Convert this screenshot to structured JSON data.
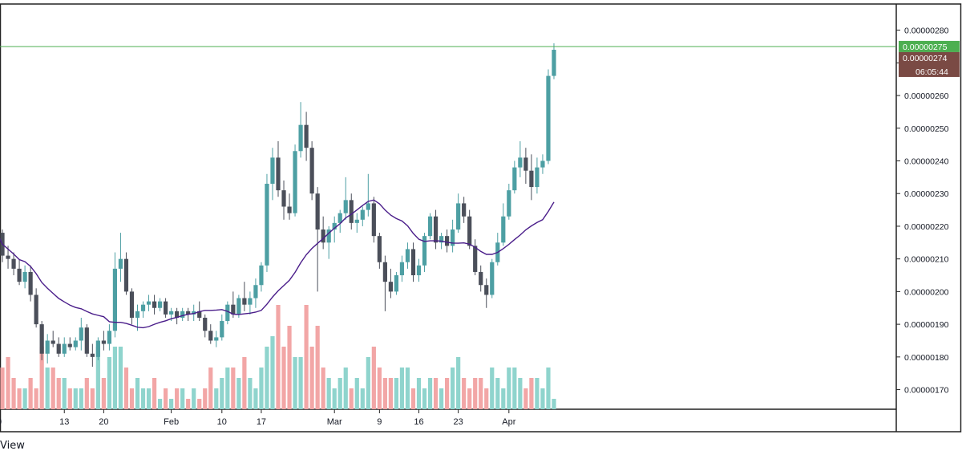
{
  "chart_data": {
    "type": "candlestick",
    "title": "",
    "xlabel": "",
    "ylabel": "",
    "ylim": [
      1.64e-06,
      2.88e-06
    ],
    "y_ticks": [
      "0.00000170",
      "0.00000180",
      "0.00000190",
      "0.00000200",
      "0.00000210",
      "0.00000220",
      "0.00000230",
      "0.00000240",
      "0.00000250",
      "0.00000260",
      "0.00000270",
      "0.00000280"
    ],
    "y_tick_values": [
      1.7e-06,
      1.8e-06,
      1.9e-06,
      2e-06,
      2.1e-06,
      2.2e-06,
      2.3e-06,
      2.4e-06,
      2.5e-06,
      2.6e-06,
      2.7e-06,
      2.8e-06
    ],
    "x_ticks": [
      {
        "label": "20",
        "date": "2020-01-01"
      },
      {
        "label": "13",
        "date": "2020-01-13"
      },
      {
        "label": "20",
        "date": "2020-01-20"
      },
      {
        "label": "Feb",
        "date": "2020-02-01"
      },
      {
        "label": "10",
        "date": "2020-02-10"
      },
      {
        "label": "17",
        "date": "2020-02-17"
      },
      {
        "label": "Mar",
        "date": "2020-03-01"
      },
      {
        "label": "9",
        "date": "2020-03-09"
      },
      {
        "label": "16",
        "date": "2020-03-16"
      },
      {
        "label": "23",
        "date": "2020-03-23"
      },
      {
        "label": "Apr",
        "date": "2020-04-01"
      }
    ],
    "start_date": "2020-01-01",
    "candles_ohlc": [
      [
        2.13e-06,
        2.21e-06,
        2.1e-06,
        2.18e-06
      ],
      [
        2.18e-06,
        2.19e-06,
        2.09e-06,
        2.11e-06
      ],
      [
        2.11e-06,
        2.14e-06,
        2.07e-06,
        2.1e-06
      ],
      [
        2.1e-06,
        2.12e-06,
        2.05e-06,
        2.07e-06
      ],
      [
        2.07e-06,
        2.1e-06,
        2.02e-06,
        2.03e-06
      ],
      [
        2.03e-06,
        2.08e-06,
        2.01e-06,
        2.06e-06
      ],
      [
        2.06e-06,
        2.08e-06,
        1.97e-06,
        1.99e-06
      ],
      [
        1.99e-06,
        2.01e-06,
        1.89e-06,
        1.9e-06
      ],
      [
        1.9e-06,
        1.91e-06,
        1.79e-06,
        1.81e-06
      ],
      [
        1.81e-06,
        1.87e-06,
        1.78e-06,
        1.85e-06
      ],
      [
        1.85e-06,
        1.88e-06,
        1.83e-06,
        1.84e-06
      ],
      [
        1.84e-06,
        1.86e-06,
        1.8e-06,
        1.81e-06
      ],
      [
        1.81e-06,
        1.86e-06,
        1.8e-06,
        1.84e-06
      ],
      [
        1.84e-06,
        1.86e-06,
        1.82e-06,
        1.83e-06
      ],
      [
        1.83e-06,
        1.86e-06,
        1.82e-06,
        1.85e-06
      ],
      [
        1.85e-06,
        1.92e-06,
        1.82e-06,
        1.89e-06
      ],
      [
        1.89e-06,
        1.9e-06,
        1.8e-06,
        1.81e-06
      ],
      [
        1.81e-06,
        1.84e-06,
        1.77e-06,
        1.8e-06
      ],
      [
        1.8e-06,
        1.86e-06,
        1.79e-06,
        1.85e-06
      ],
      [
        1.85e-06,
        1.88e-06,
        1.82e-06,
        1.84e-06
      ],
      [
        1.84e-06,
        1.9e-06,
        1.82e-06,
        1.88e-06
      ],
      [
        1.88e-06,
        2.12e-06,
        1.86e-06,
        2.07e-06
      ],
      [
        2.07e-06,
        2.18e-06,
        2.03e-06,
        2.1e-06
      ],
      [
        2.1e-06,
        2.12e-06,
        1.99e-06,
        2e-06
      ],
      [
        2e-06,
        2.01e-06,
        1.9e-06,
        1.92e-06
      ],
      [
        1.92e-06,
        1.96e-06,
        1.88e-06,
        1.94e-06
      ],
      [
        1.94e-06,
        1.97e-06,
        1.92e-06,
        1.96e-06
      ],
      [
        1.96e-06,
        1.99e-06,
        1.94e-06,
        1.97e-06
      ],
      [
        1.97e-06,
        1.99e-06,
        1.93e-06,
        1.95e-06
      ],
      [
        1.95e-06,
        1.98e-06,
        1.94e-06,
        1.97e-06
      ],
      [
        1.97e-06,
        1.98e-06,
        1.92e-06,
        1.93e-06
      ],
      [
        1.93e-06,
        1.95e-06,
        1.91e-06,
        1.94e-06
      ],
      [
        1.94e-06,
        1.95e-06,
        1.9e-06,
        1.92e-06
      ],
      [
        1.92e-06,
        1.95e-06,
        1.91e-06,
        1.94e-06
      ],
      [
        1.94e-06,
        1.95e-06,
        1.91e-06,
        1.93e-06
      ],
      [
        1.93e-06,
        1.96e-06,
        1.91e-06,
        1.94e-06
      ],
      [
        1.94e-06,
        1.97e-06,
        1.91e-06,
        1.92e-06
      ],
      [
        1.92e-06,
        1.93e-06,
        1.86e-06,
        1.88e-06
      ],
      [
        1.88e-06,
        1.9e-06,
        1.84e-06,
        1.85e-06
      ],
      [
        1.85e-06,
        1.88e-06,
        1.83e-06,
        1.86e-06
      ],
      [
        1.86e-06,
        1.93e-06,
        1.85e-06,
        1.91e-06
      ],
      [
        1.91e-06,
        1.97e-06,
        1.9e-06,
        1.96e-06
      ],
      [
        1.96e-06,
        2e-06,
        1.92e-06,
        1.93e-06
      ],
      [
        1.93e-06,
        1.99e-06,
        1.92e-06,
        1.98e-06
      ],
      [
        1.98e-06,
        2.03e-06,
        1.94e-06,
        1.96e-06
      ],
      [
        1.96e-06,
        2e-06,
        1.93e-06,
        1.98e-06
      ],
      [
        1.98e-06,
        2.04e-06,
        1.95e-06,
        2.02e-06
      ],
      [
        2.02e-06,
        2.09e-06,
        2e-06,
        2.08e-06
      ],
      [
        2.08e-06,
        2.36e-06,
        2.06e-06,
        2.33e-06
      ],
      [
        2.33e-06,
        2.44e-06,
        2.28e-06,
        2.41e-06
      ],
      [
        2.41e-06,
        2.46e-06,
        2.29e-06,
        2.31e-06
      ],
      [
        2.31e-06,
        2.34e-06,
        2.22e-06,
        2.26e-06
      ],
      [
        2.26e-06,
        2.3e-06,
        2.22e-06,
        2.24e-06
      ],
      [
        2.24e-06,
        2.45e-06,
        2.23e-06,
        2.43e-06
      ],
      [
        2.43e-06,
        2.58e-06,
        2.41e-06,
        2.51e-06
      ],
      [
        2.51e-06,
        2.55e-06,
        2.4e-06,
        2.44e-06
      ],
      [
        2.44e-06,
        2.46e-06,
        2.28e-06,
        2.3e-06
      ],
      [
        2.3e-06,
        2.32e-06,
        2e-06,
        2.19e-06
      ],
      [
        2.19e-06,
        2.23e-06,
        2.13e-06,
        2.15e-06
      ],
      [
        2.15e-06,
        2.2e-06,
        2.1e-06,
        2.19e-06
      ],
      [
        2.19e-06,
        2.23e-06,
        2.15e-06,
        2.21e-06
      ],
      [
        2.21e-06,
        2.25e-06,
        2.18e-06,
        2.24e-06
      ],
      [
        2.24e-06,
        2.35e-06,
        2.22e-06,
        2.28e-06
      ],
      [
        2.28e-06,
        2.3e-06,
        2.19e-06,
        2.21e-06
      ],
      [
        2.21e-06,
        2.24e-06,
        2.18e-06,
        2.22e-06
      ],
      [
        2.22e-06,
        2.26e-06,
        2.2e-06,
        2.25e-06
      ],
      [
        2.25e-06,
        2.36e-06,
        2.23e-06,
        2.27e-06
      ],
      [
        2.27e-06,
        2.29e-06,
        2.15e-06,
        2.17e-06
      ],
      [
        2.17e-06,
        2.18e-06,
        2.07e-06,
        2.09e-06
      ],
      [
        2.09e-06,
        2.11e-06,
        1.94e-06,
        2.03e-06
      ],
      [
        2.03e-06,
        2.07e-06,
        1.98e-06,
        2e-06
      ],
      [
        2e-06,
        2.06e-06,
        1.99e-06,
        2.05e-06
      ],
      [
        2.05e-06,
        2.11e-06,
        2.03e-06,
        2.09e-06
      ],
      [
        2.09e-06,
        2.15e-06,
        2.07e-06,
        2.13e-06
      ],
      [
        2.13e-06,
        2.15e-06,
        2.03e-06,
        2.05e-06
      ],
      [
        2.05e-06,
        2.1e-06,
        2.03e-06,
        2.08e-06
      ],
      [
        2.08e-06,
        2.18e-06,
        2.06e-06,
        2.17e-06
      ],
      [
        2.17e-06,
        2.24e-06,
        2.16e-06,
        2.23e-06
      ],
      [
        2.23e-06,
        2.25e-06,
        2.13e-06,
        2.15e-06
      ],
      [
        2.15e-06,
        2.18e-06,
        2.13e-06,
        2.17e-06
      ],
      [
        2.17e-06,
        2.19e-06,
        2.12e-06,
        2.14e-06
      ],
      [
        2.14e-06,
        2.22e-06,
        2.12e-06,
        2.19e-06
      ],
      [
        2.19e-06,
        2.3e-06,
        2.18e-06,
        2.27e-06
      ],
      [
        2.27e-06,
        2.29e-06,
        2.21e-06,
        2.23e-06
      ],
      [
        2.23e-06,
        2.25e-06,
        2.13e-06,
        2.14e-06
      ],
      [
        2.14e-06,
        2.16e-06,
        2.05e-06,
        2.06e-06
      ],
      [
        2.06e-06,
        2.08e-06,
        2e-06,
        2.02e-06
      ],
      [
        2.02e-06,
        2.04e-06,
        1.95e-06,
        1.99e-06
      ],
      [
        1.99e-06,
        2.1e-06,
        1.98e-06,
        2.09e-06
      ],
      [
        2.09e-06,
        2.18e-06,
        2.08e-06,
        2.15e-06
      ],
      [
        2.15e-06,
        2.27e-06,
        2.14e-06,
        2.23e-06
      ],
      [
        2.23e-06,
        2.33e-06,
        2.22e-06,
        2.31e-06
      ],
      [
        2.31e-06,
        2.4e-06,
        2.3e-06,
        2.38e-06
      ],
      [
        2.38e-06,
        2.46e-06,
        2.35e-06,
        2.41e-06
      ],
      [
        2.41e-06,
        2.44e-06,
        2.33e-06,
        2.37e-06
      ],
      [
        2.37e-06,
        2.42e-06,
        2.28e-06,
        2.32e-06
      ],
      [
        2.32e-06,
        2.41e-06,
        2.3e-06,
        2.38e-06
      ],
      [
        2.38e-06,
        2.42e-06,
        2.36e-06,
        2.4e-06
      ],
      [
        2.4e-06,
        2.68e-06,
        2.39e-06,
        2.66e-06
      ],
      [
        2.66e-06,
        2.76e-06,
        2.65e-06,
        2.74e-06
      ]
    ],
    "volumes": [
      3,
      4,
      5,
      3,
      2,
      2,
      3,
      2,
      6,
      4,
      4,
      3,
      3,
      2,
      2,
      2,
      3,
      2,
      6,
      3,
      5,
      6,
      6,
      4,
      2,
      3,
      2,
      2,
      3,
      1,
      2,
      1,
      2,
      2,
      1,
      2,
      1,
      2,
      4,
      2,
      3,
      4,
      4,
      3,
      5,
      3,
      2,
      4,
      6,
      7,
      10,
      6,
      8,
      5,
      5,
      10,
      6,
      8,
      4,
      3,
      2,
      3,
      4,
      2,
      3,
      2,
      5,
      6,
      4,
      3,
      3,
      3,
      4,
      4,
      2,
      3,
      2,
      3,
      3,
      2,
      3,
      4,
      5,
      3,
      2,
      3,
      3,
      2,
      4,
      3,
      2,
      4,
      4,
      3,
      2,
      3,
      3,
      2,
      4,
      1
    ],
    "volume_up_color": "#8fd4cd",
    "volume_down_color": "#f2a6a6",
    "candle_up_color": "#4d9fa3",
    "candle_down_color": "#4b4f5a",
    "ma_color": "#4a1d8a",
    "price_line": {
      "value": 2.75e-06,
      "label": "0.00000275",
      "color": "#4caf50"
    },
    "last_price": {
      "label": "0.00000274",
      "timer": "06:05:44",
      "color": "#7a4a44"
    }
  },
  "footer": {
    "text": "View"
  }
}
